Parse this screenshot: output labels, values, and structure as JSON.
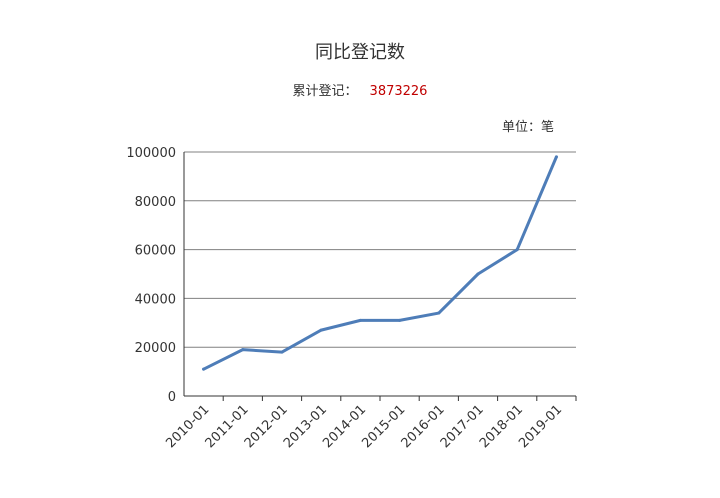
{
  "chart_data": {
    "type": "line",
    "title": "同比登记数",
    "subtitle_label": "累计登记：",
    "subtitle_value": "3873226",
    "unit_label": "单位：笔",
    "categories": [
      "2010-01",
      "2011-01",
      "2012-01",
      "2013-01",
      "2014-01",
      "2015-01",
      "2016-01",
      "2017-01",
      "2018-01",
      "2019-01"
    ],
    "series": [
      {
        "values": [
          11000,
          19000,
          18000,
          27000,
          31000,
          31000,
          34000,
          50000,
          60000,
          98000
        ]
      }
    ],
    "y_ticks": [
      "0",
      "20000",
      "40000",
      "60000",
      "80000",
      "100000"
    ],
    "ylim": [
      0,
      100000
    ],
    "grid": true,
    "colors": {
      "line": "#4e7db8",
      "grid": "#808080",
      "axis": "#333333",
      "total": "#c00000"
    }
  }
}
